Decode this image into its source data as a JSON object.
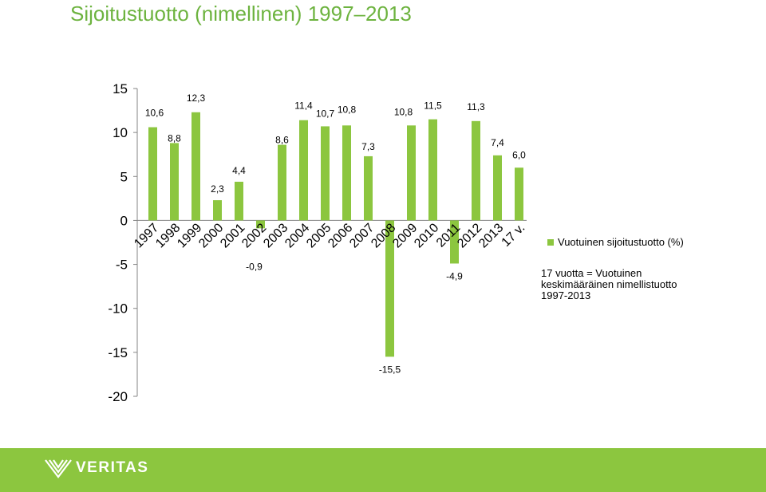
{
  "header": {
    "title": "Sijoitustuotto (nimellinen) 1997–2013"
  },
  "legend": {
    "label": "Vuotuinen sijoitustuotto (%)",
    "color": "#8cc63f"
  },
  "note": "17 vuotta = Vuotuinen\nkeskimääräinen nimellistuotto\n1997-2013",
  "footer": {
    "brand": "VERITAS",
    "color": "#8cc63f"
  },
  "chart_data": {
    "type": "bar",
    "categories": [
      "1997",
      "1998",
      "1999",
      "2000",
      "2001",
      "2002",
      "2003",
      "2004",
      "2005",
      "2006",
      "2007",
      "2008",
      "2009",
      "2010",
      "2011",
      "2012",
      "2013",
      "17 v."
    ],
    "values": [
      10.6,
      8.8,
      12.3,
      2.3,
      4.4,
      -0.9,
      8.6,
      11.4,
      10.7,
      10.8,
      7.3,
      -15.5,
      10.8,
      11.5,
      -4.9,
      11.3,
      7.4,
      6.0
    ],
    "value_labels": [
      "10,6",
      "8,8",
      "12,3",
      "2,3",
      "4,4",
      "-0,9",
      "8,6",
      "11,4",
      "10,7",
      "10,8",
      "7,3",
      "-15,5",
      "10,8",
      "11,5",
      "-4,9",
      "11,3",
      "7,4",
      "6,0"
    ],
    "yticks": [
      15,
      10,
      5,
      0,
      -5,
      -10,
      -15,
      -20
    ],
    "ylim": [
      -20,
      15
    ],
    "grid": false,
    "legend_position": "right",
    "color": "#8cc63f"
  }
}
